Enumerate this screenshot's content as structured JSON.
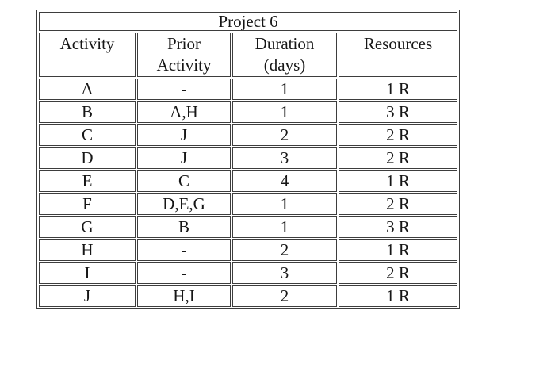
{
  "colors": {
    "background": "#ffffff",
    "border": "#3d3d3d",
    "text": "#161616"
  },
  "table": {
    "title": "Project 6",
    "headers": [
      {
        "line1": "Activity",
        "line2": ""
      },
      {
        "line1": "Prior",
        "line2": "Activity"
      },
      {
        "line1": "Duration",
        "line2": "(days)"
      },
      {
        "line1": "Resources",
        "line2": ""
      }
    ],
    "rows": [
      {
        "activity": "A",
        "prior": "-",
        "duration": "1",
        "resources": "1 R"
      },
      {
        "activity": "B",
        "prior": "A,H",
        "duration": "1",
        "resources": "3 R"
      },
      {
        "activity": "C",
        "prior": "J",
        "duration": "2",
        "resources": "2 R"
      },
      {
        "activity": "D",
        "prior": "J",
        "duration": "3",
        "resources": "2 R"
      },
      {
        "activity": "E",
        "prior": "C",
        "duration": "4",
        "resources": "1 R"
      },
      {
        "activity": "F",
        "prior": "D,E,G",
        "duration": "1",
        "resources": "2 R"
      },
      {
        "activity": "G",
        "prior": "B",
        "duration": "1",
        "resources": "3 R"
      },
      {
        "activity": "H",
        "prior": "-",
        "duration": "2",
        "resources": "1 R"
      },
      {
        "activity": "I",
        "prior": "-",
        "duration": "3",
        "resources": "2 R"
      },
      {
        "activity": "J",
        "prior": "H,I",
        "duration": "2",
        "resources": "1 R"
      }
    ]
  }
}
